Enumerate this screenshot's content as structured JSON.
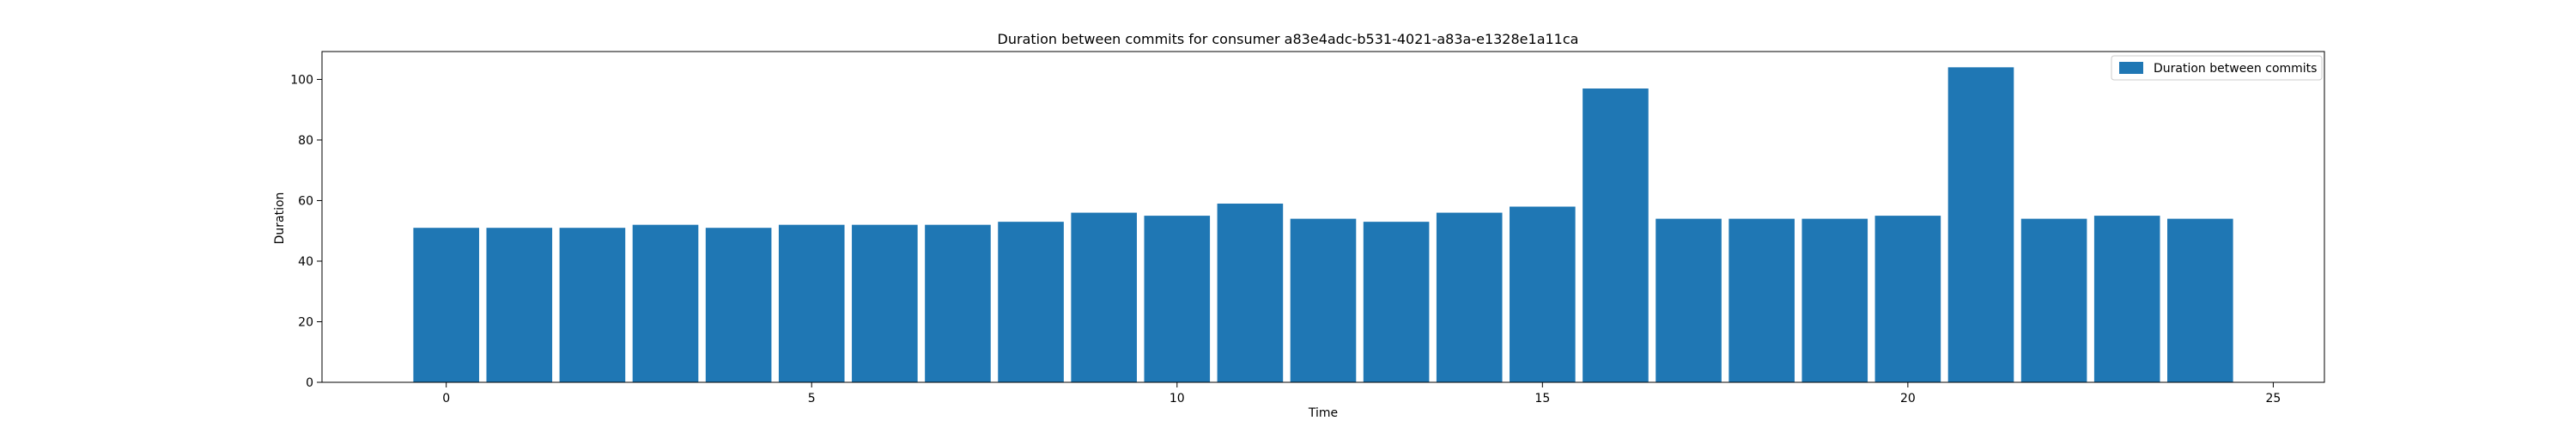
{
  "chart_data": {
    "type": "bar",
    "title": "Duration between commits for consumer a83e4adc-b531-4021-a83a-e1328e1a11ca",
    "xlabel": "Time",
    "ylabel": "Duration",
    "x": [
      0,
      1,
      2,
      3,
      4,
      5,
      6,
      7,
      8,
      9,
      10,
      11,
      12,
      13,
      14,
      15,
      16,
      17,
      18,
      19,
      20,
      21,
      22,
      23,
      24
    ],
    "series": [
      {
        "name": "Duration between commits",
        "values": [
          51,
          51,
          51,
          52,
          51,
          52,
          52,
          52,
          53,
          56,
          55,
          59,
          54,
          53,
          56,
          58,
          97,
          54,
          54,
          54,
          55,
          104,
          54,
          55,
          54
        ],
        "color": "#1f77b4"
      }
    ],
    "xlim": [
      -1.7,
      25.7
    ],
    "ylim": [
      0,
      109.2
    ],
    "xticks": [
      0,
      5,
      10,
      15,
      20,
      25
    ],
    "yticks": [
      0,
      20,
      40,
      60,
      80,
      100
    ],
    "grid": false,
    "legend_position": "top-right"
  }
}
